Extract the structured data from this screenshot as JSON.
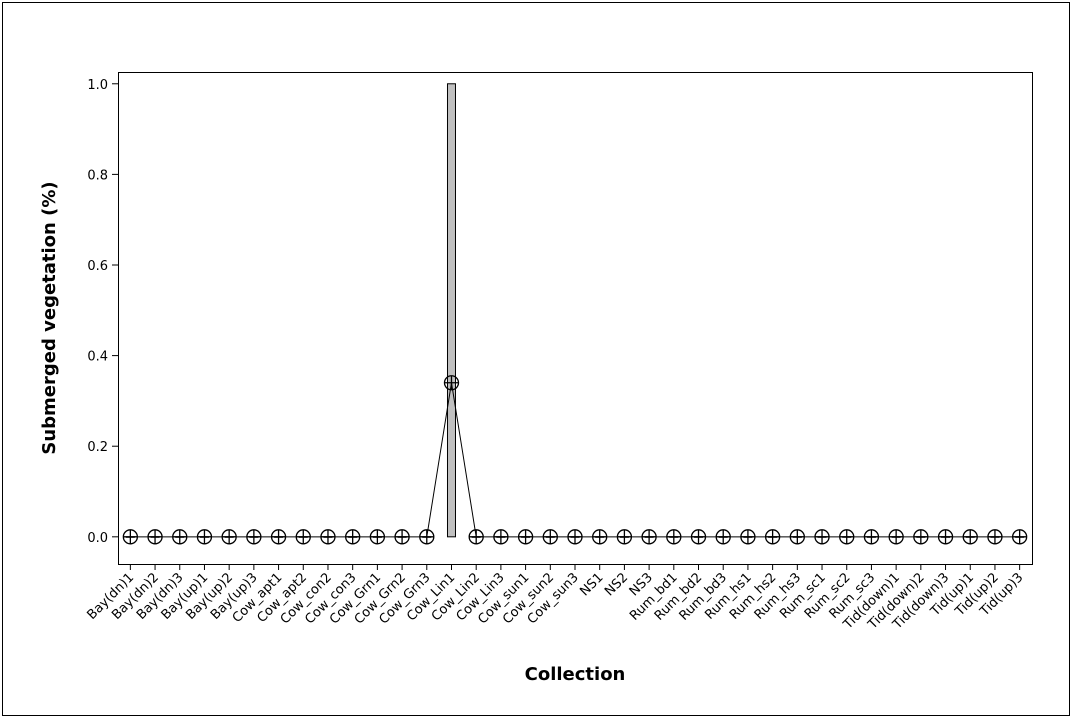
{
  "chart_data": {
    "type": "box",
    "x_label": "Collection",
    "y_label": "Submerged vegetation (%)",
    "categories": [
      "Bay(dn)1",
      "Bay(dn)2",
      "Bay(dn)3",
      "Bay(up)1",
      "Bay(up)2",
      "Bay(up)3",
      "Cow_apt1",
      "Cow_apt2",
      "Cow_con2",
      "Cow_con3",
      "Cow_Grn1",
      "Cow_Grn2",
      "Cow_Grn3",
      "Cow_Lin1",
      "Cow_Lin2",
      "Cow_Lin3",
      "Cow_sun1",
      "Cow_sun2",
      "Cow_sun3",
      "NS1",
      "NS2",
      "NS3",
      "Rum_bd1",
      "Rum_bd2",
      "Rum_bd3",
      "Rum_hs1",
      "Rum_hs2",
      "Rum_hs3",
      "Rum_sc1",
      "Rum_sc2",
      "Rum_sc3",
      "Tid(down)1",
      "Tid(down)2",
      "Tid(down)3",
      "Tid(up)1",
      "Tid(up)2",
      "Tid(up)3"
    ],
    "box_low": [
      0,
      0,
      0,
      0,
      0,
      0,
      0,
      0,
      0,
      0,
      0,
      0,
      0,
      0,
      0,
      0,
      0,
      0,
      0,
      0,
      0,
      0,
      0,
      0,
      0,
      0,
      0,
      0,
      0,
      0,
      0,
      0,
      0,
      0,
      0,
      0,
      0
    ],
    "box_high": [
      0,
      0,
      0,
      0,
      0,
      0,
      0,
      0,
      0,
      0,
      0,
      0,
      0,
      1,
      0,
      0,
      0,
      0,
      0,
      0,
      0,
      0,
      0,
      0,
      0,
      0,
      0,
      0,
      0,
      0,
      0,
      0,
      0,
      0,
      0,
      0,
      0
    ],
    "means": [
      0,
      0,
      0,
      0,
      0,
      0,
      0,
      0,
      0,
      0,
      0,
      0,
      0,
      0.34,
      0,
      0,
      0,
      0,
      0,
      0,
      0,
      0,
      0,
      0,
      0,
      0,
      0,
      0,
      0,
      0,
      0,
      0,
      0,
      0,
      0,
      0,
      0
    ],
    "box_color": "#c0c0c0",
    "ylim": [
      -0.06,
      1.026
    ],
    "yticks": [
      {
        "value": 0,
        "label": "0.0"
      },
      0.2,
      0.4,
      0.6,
      0.8,
      {
        "value": 1,
        "label": "1.0"
      }
    ]
  }
}
